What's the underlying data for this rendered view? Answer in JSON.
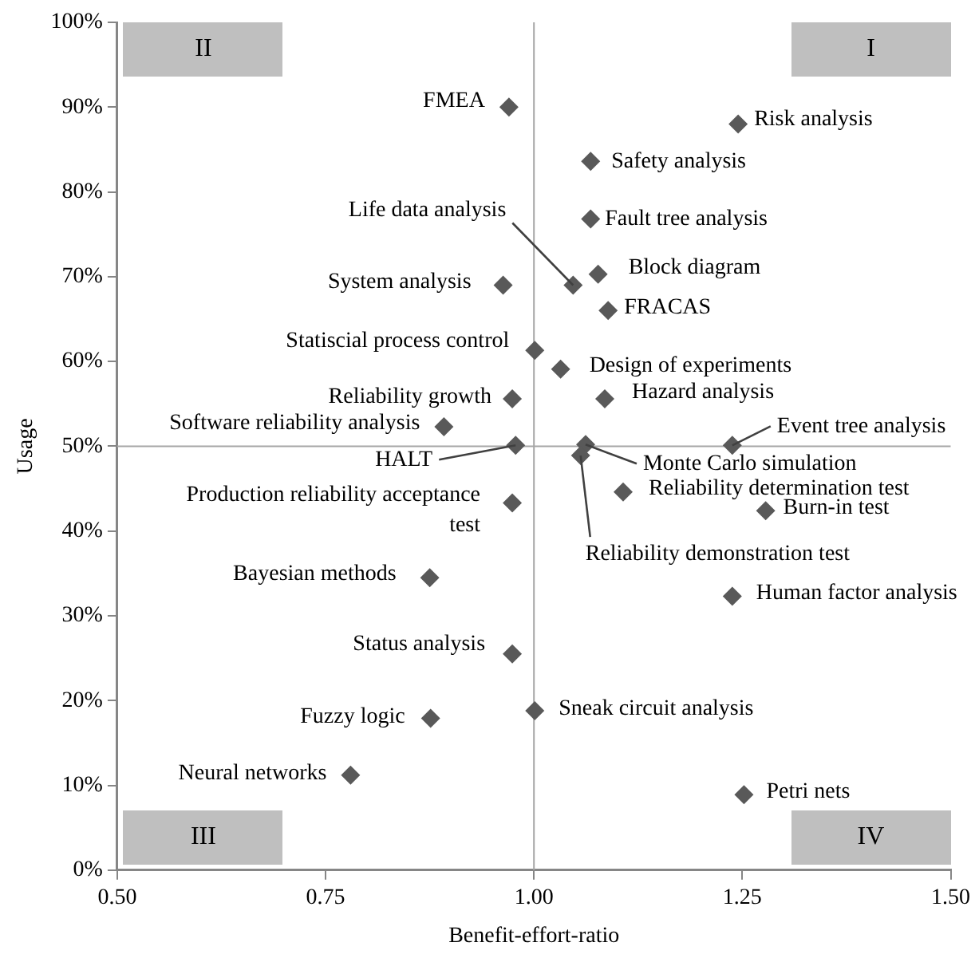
{
  "chart_data": {
    "type": "scatter",
    "xlabel": "Benefit-effort-ratio",
    "ylabel": "Usage",
    "x": [
      0.97,
      1.245,
      1.068,
      1.068,
      1.077,
      1.047,
      0.963,
      1.089,
      1.001,
      1.032,
      0.974,
      1.085,
      0.892,
      0.978,
      1.062,
      1.056,
      1.238,
      1.107,
      0.974,
      1.278,
      0.875,
      1.238,
      0.974,
      1.001,
      0.876,
      0.78,
      1.252
    ],
    "series": [
      {
        "color": "#595959",
        "values": [
          90,
          88,
          83.6,
          76.8,
          70.3,
          69,
          69,
          66,
          61.3,
          59.1,
          55.6,
          55.6,
          52.3,
          50.1,
          50.2,
          48.9,
          50.1,
          44.6,
          43.3,
          42.4,
          34.5,
          32.3,
          25.5,
          18.8,
          17.9,
          11.2,
          8.9
        ]
      }
    ],
    "xlim": [
      0.5,
      1.5
    ],
    "xticks": [
      {
        "value": 0.5,
        "label": "0.50"
      },
      {
        "value": 0.75,
        "label": "0.75"
      },
      {
        "value": 1,
        "label": "1.00"
      },
      {
        "value": 1.25,
        "label": "1.25"
      },
      {
        "value": 1.5,
        "label": "1.50"
      }
    ],
    "ylim": [
      0,
      100
    ],
    "yticks": [
      {
        "value": 0,
        "label": "0%"
      },
      {
        "value": 10,
        "label": "10%"
      },
      {
        "value": 20,
        "label": "20%"
      },
      {
        "value": 30,
        "label": "30%"
      },
      {
        "value": 40,
        "label": "40%"
      },
      {
        "value": 50,
        "label": "50%"
      },
      {
        "value": 60,
        "label": "60%"
      },
      {
        "value": 70,
        "label": "70%"
      },
      {
        "value": 80,
        "label": "80%"
      },
      {
        "value": 90,
        "label": "90%"
      },
      {
        "value": 100,
        "label": "100%"
      }
    ],
    "ref_lines": [
      {
        "axis": "x",
        "value": 1,
        "color": "#a6a6a6"
      },
      {
        "axis": "y",
        "value": 50,
        "color": "#a6a6a6"
      }
    ],
    "annotations": [
      "II",
      "I",
      "III",
      "IV",
      {
        "text": "FMEA",
        "x": 0.97,
        "y": 90
      },
      {
        "text": "Risk analysis",
        "x": 1.245,
        "y": 88
      },
      {
        "text": "Safety analysis",
        "x": 1.068,
        "y": 83.6
      },
      {
        "text": "Fault tree analysis",
        "x": 1.068,
        "y": 76.8
      },
      {
        "text": "Block diagram",
        "x": 1.077,
        "y": 70.3
      },
      {
        "text": "Life data analysis",
        "x": 1.047,
        "y": 69
      },
      {
        "text": "System analysis",
        "x": 0.963,
        "y": 69
      },
      {
        "text": "FRACAS",
        "x": 1.089,
        "y": 66
      },
      {
        "text": "Statiscial process control",
        "x": 1.001,
        "y": 61.3
      },
      {
        "text": "Design of experiments",
        "x": 1.032,
        "y": 59.1
      },
      {
        "text": "Reliability growth",
        "x": 0.974,
        "y": 55.6
      },
      {
        "text": "Hazard analysis",
        "x": 1.085,
        "y": 55.6
      },
      {
        "text": "Software reliability analysis",
        "x": 0.892,
        "y": 52.3
      },
      {
        "text": "HALT",
        "x": 0.978,
        "y": 50.1
      },
      {
        "text": "Monte Carlo simulation",
        "x": 1.062,
        "y": 50.2
      },
      {
        "text": "Reliability demonstration test",
        "x": 1.056,
        "y": 48.9
      },
      {
        "text": "Event tree analysis",
        "x": 1.238,
        "y": 50.1
      },
      {
        "text": "Reliability determination test",
        "x": 1.107,
        "y": 44.6
      },
      {
        "text": "Production reliability acceptance test",
        "x": 0.974,
        "y": 43.3
      },
      {
        "text": "Burn-in test",
        "x": 1.278,
        "y": 42.4
      },
      {
        "text": "Bayesian methods",
        "x": 0.875,
        "y": 34.5
      },
      {
        "text": "Human factor analysis",
        "x": 1.238,
        "y": 32.3
      },
      {
        "text": "Status analysis",
        "x": 0.974,
        "y": 25.5
      },
      {
        "text": "Sneak circuit analysis",
        "x": 1.001,
        "y": 18.8
      },
      {
        "text": "Fuzzy logic",
        "x": 0.876,
        "y": 17.9
      },
      {
        "text": "Neural networks",
        "x": 0.78,
        "y": 11.2
      },
      {
        "text": "Petri nets",
        "x": 1.252,
        "y": 8.9
      }
    ],
    "marker": "diamond",
    "grid": false,
    "legend": false
  }
}
